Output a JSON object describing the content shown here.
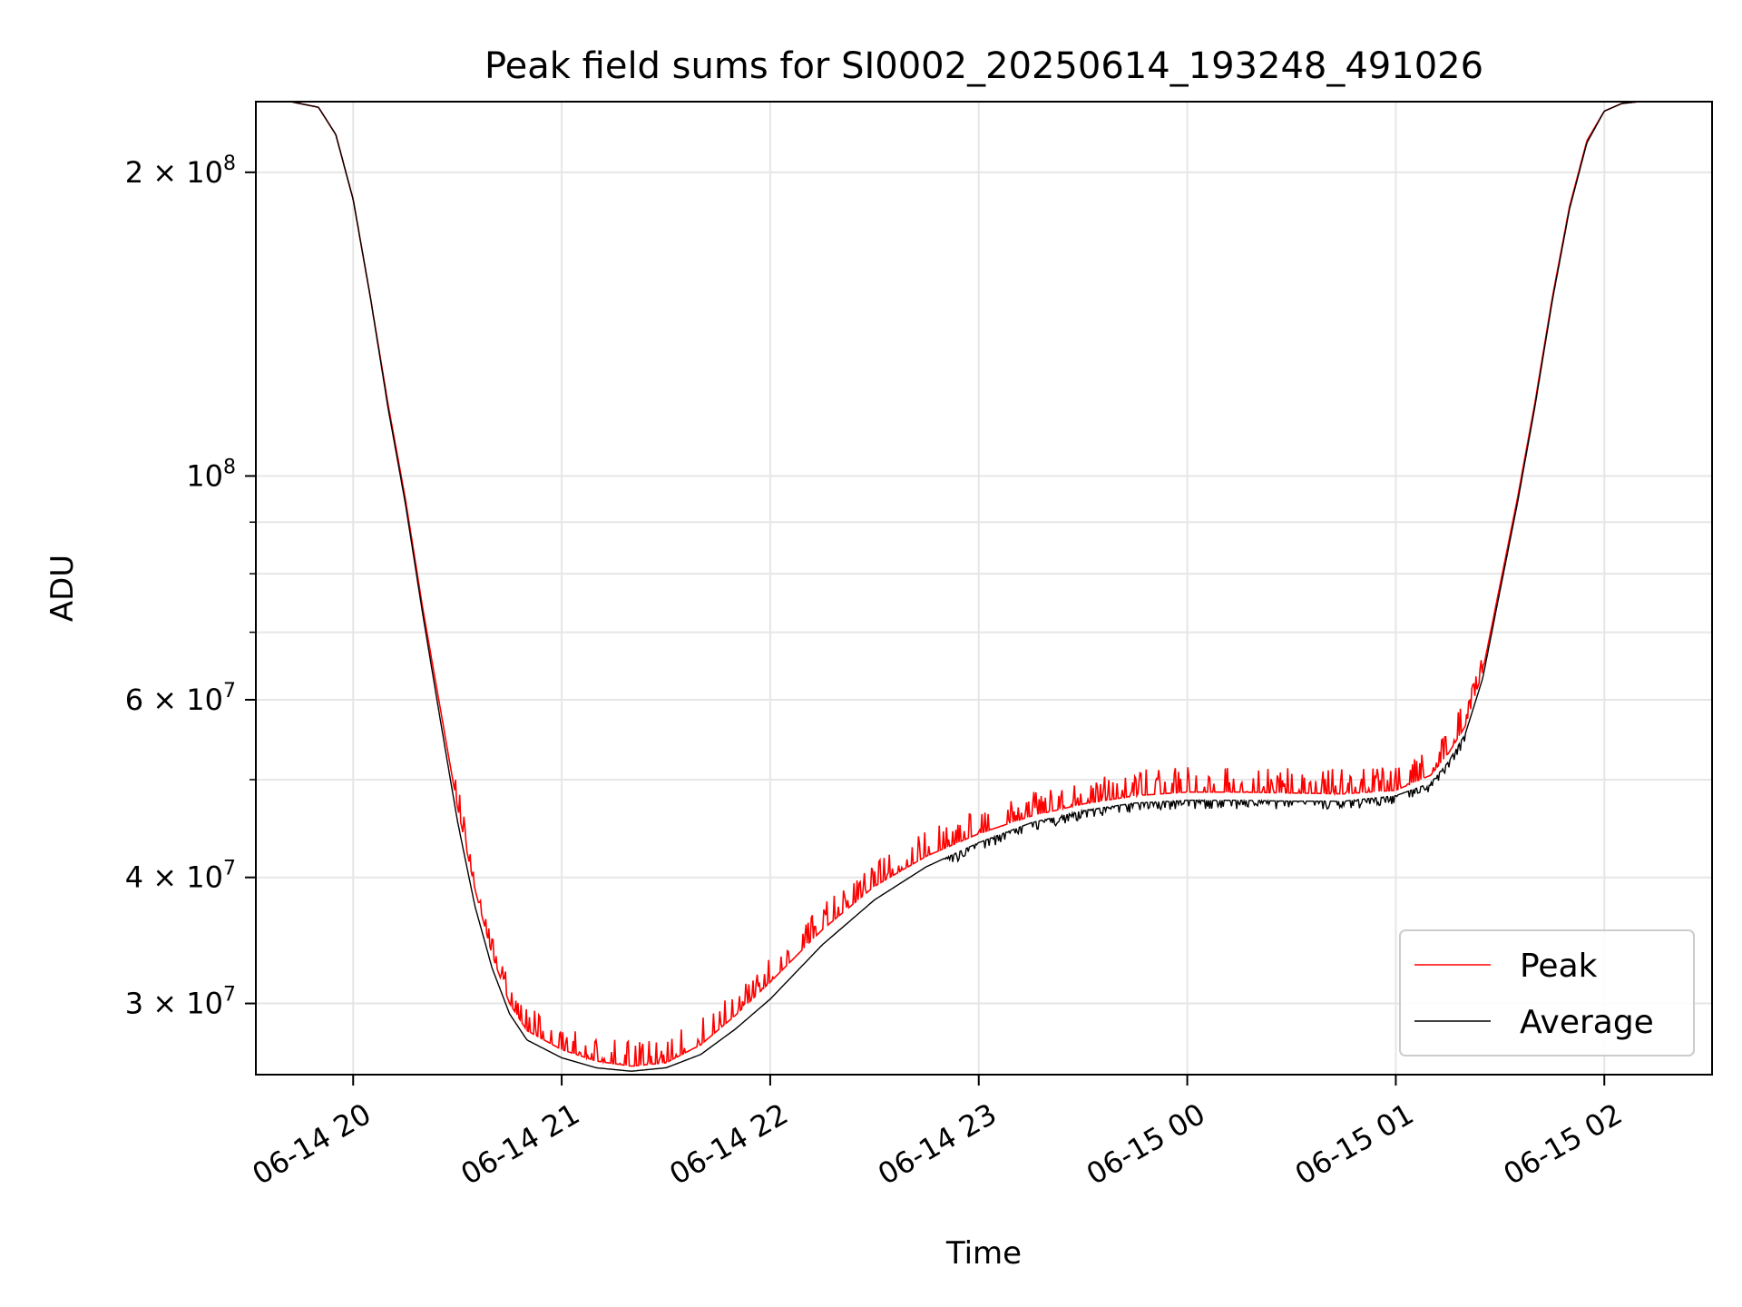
{
  "chart_data": {
    "type": "line",
    "title": "Peak field sums for SI0002_20250614_193248_491026",
    "xlabel": "Time",
    "ylabel": "ADU",
    "yscale": "log",
    "grid": true,
    "legend_position": "lower-right",
    "xlim": [
      "2025-06-14 19:32",
      "2025-06-15 02:31"
    ],
    "ylim": [
      25500000,
      235000000
    ],
    "x_ticks": [
      {
        "label": "06-14 20",
        "value": "2025-06-14 20:00"
      },
      {
        "label": "06-14 21",
        "value": "2025-06-14 21:00"
      },
      {
        "label": "06-14 22",
        "value": "2025-06-14 22:00"
      },
      {
        "label": "06-14 23",
        "value": "2025-06-14 23:00"
      },
      {
        "label": "06-15 00",
        "value": "2025-06-15 00:00"
      },
      {
        "label": "06-15 01",
        "value": "2025-06-15 01:00"
      },
      {
        "label": "06-15 02",
        "value": "2025-06-15 02:00"
      }
    ],
    "y_ticks": [
      {
        "label": "3 × 10",
        "exp": "7",
        "value": 30000000
      },
      {
        "label": "4 × 10",
        "exp": "7",
        "value": 40000000
      },
      {
        "label": "6 × 10",
        "exp": "7",
        "value": 60000000
      },
      {
        "label": "10",
        "exp": "8",
        "value": 100000000
      },
      {
        "label": "2 × 10",
        "exp": "8",
        "value": 200000000
      }
    ],
    "y_minor_ticks": [
      50000000,
      70000000,
      80000000,
      90000000
    ],
    "series": [
      {
        "name": "Peak",
        "color": "#ff0000",
        "noise": true,
        "x": [
          "2025-06-14 19:32",
          "2025-06-14 19:42",
          "2025-06-14 19:50",
          "2025-06-14 19:55",
          "2025-06-14 20:00",
          "2025-06-14 20:05",
          "2025-06-14 20:10",
          "2025-06-14 20:15",
          "2025-06-14 20:20",
          "2025-06-14 20:25",
          "2025-06-14 20:30",
          "2025-06-14 20:35",
          "2025-06-14 20:40",
          "2025-06-14 20:45",
          "2025-06-14 20:50",
          "2025-06-14 21:00",
          "2025-06-14 21:10",
          "2025-06-14 21:20",
          "2025-06-14 21:30",
          "2025-06-14 21:40",
          "2025-06-14 21:50",
          "2025-06-14 22:00",
          "2025-06-14 22:15",
          "2025-06-14 22:30",
          "2025-06-14 22:45",
          "2025-06-14 23:00",
          "2025-06-14 23:15",
          "2025-06-14 23:30",
          "2025-06-14 23:45",
          "2025-06-15 00:00",
          "2025-06-15 00:15",
          "2025-06-15 00:30",
          "2025-06-15 00:45",
          "2025-06-15 01:00",
          "2025-06-15 01:10",
          "2025-06-15 01:15",
          "2025-06-15 01:20",
          "2025-06-15 01:25",
          "2025-06-15 01:30",
          "2025-06-15 01:35",
          "2025-06-15 01:40",
          "2025-06-15 01:45",
          "2025-06-15 01:50",
          "2025-06-15 01:55",
          "2025-06-15 02:00",
          "2025-06-15 02:05",
          "2025-06-15 02:10",
          "2025-06-15 02:20",
          "2025-06-15 02:31"
        ],
        "y": [
          235000000,
          235000000,
          232000000,
          218000000,
          188000000,
          150000000,
          118000000,
          95000000,
          74000000,
          59000000,
          47000000,
          39000000,
          33500000,
          30000000,
          28200000,
          27000000,
          26300000,
          26000000,
          26200000,
          27300000,
          29200000,
          31500000,
          35500000,
          39200000,
          42000000,
          44200000,
          46000000,
          47300000,
          48200000,
          48600000,
          48600000,
          48500000,
          48400000,
          48800000,
          50500000,
          53000000,
          56500000,
          64000000,
          78000000,
          95000000,
          118000000,
          150000000,
          185000000,
          215000000,
          230000000,
          234000000,
          235000000,
          235000000,
          235000000
        ]
      },
      {
        "name": "Average",
        "color": "#000000",
        "noise": false,
        "x": [
          "2025-06-14 19:32",
          "2025-06-14 19:42",
          "2025-06-14 19:50",
          "2025-06-14 19:55",
          "2025-06-14 20:00",
          "2025-06-14 20:05",
          "2025-06-14 20:10",
          "2025-06-14 20:15",
          "2025-06-14 20:20",
          "2025-06-14 20:25",
          "2025-06-14 20:30",
          "2025-06-14 20:35",
          "2025-06-14 20:40",
          "2025-06-14 20:45",
          "2025-06-14 20:50",
          "2025-06-14 21:00",
          "2025-06-14 21:10",
          "2025-06-14 21:20",
          "2025-06-14 21:30",
          "2025-06-14 21:40",
          "2025-06-14 21:50",
          "2025-06-14 22:00",
          "2025-06-14 22:15",
          "2025-06-14 22:30",
          "2025-06-14 22:45",
          "2025-06-14 23:00",
          "2025-06-14 23:15",
          "2025-06-14 23:30",
          "2025-06-14 23:45",
          "2025-06-15 00:00",
          "2025-06-15 00:15",
          "2025-06-15 00:30",
          "2025-06-15 00:45",
          "2025-06-15 01:00",
          "2025-06-15 01:10",
          "2025-06-15 01:15",
          "2025-06-15 01:20",
          "2025-06-15 01:25",
          "2025-06-15 01:30",
          "2025-06-15 01:35",
          "2025-06-15 01:40",
          "2025-06-15 01:45",
          "2025-06-15 01:50",
          "2025-06-15 01:55",
          "2025-06-15 02:00",
          "2025-06-15 02:05",
          "2025-06-15 02:10",
          "2025-06-15 02:20",
          "2025-06-15 02:31"
        ],
        "y": [
          235000000,
          235000000,
          232000000,
          218000000,
          188000000,
          150000000,
          117000000,
          94000000,
          73000000,
          57500000,
          45500000,
          37500000,
          32500000,
          29300000,
          27600000,
          26500000,
          25900000,
          25700000,
          25900000,
          26700000,
          28300000,
          30300000,
          34300000,
          38000000,
          41000000,
          43300000,
          45300000,
          46600000,
          47400000,
          47700000,
          47700000,
          47600000,
          47600000,
          48200000,
          49600000,
          52000000,
          55500000,
          63000000,
          77000000,
          94000000,
          117000000,
          149000000,
          184000000,
          214000000,
          230000000,
          234000000,
          235000000,
          235000000,
          235000000
        ]
      }
    ]
  }
}
